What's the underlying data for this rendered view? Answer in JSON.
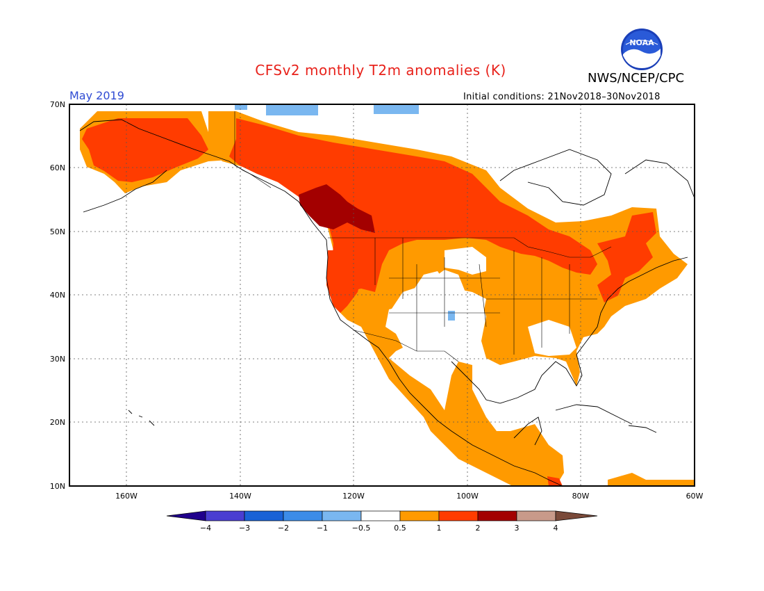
{
  "header": {
    "title": "CFSv2 monthly T2m anomalies (K)",
    "agency": "NWS/NCEP/CPC",
    "logo_text": "NOAA",
    "valid_month": "May 2019",
    "initial_conditions": "Initial conditions: 21Nov2018–30Nov2018"
  },
  "axes": {
    "lat_labels": [
      "70N",
      "60N",
      "50N",
      "40N",
      "30N",
      "20N",
      "10N"
    ],
    "lon_labels": [
      "160W",
      "140W",
      "120W",
      "100W",
      "80W",
      "60W"
    ],
    "lat_range": [
      10,
      70
    ],
    "lon_range": [
      -170,
      -60
    ],
    "grid": "dotted"
  },
  "colorbar": {
    "tick_labels": [
      "−4",
      "−3",
      "−2",
      "−1",
      "−0.5",
      "0.5",
      "1",
      "2",
      "3",
      "4"
    ],
    "colors": [
      "#20008c",
      "#4a3ed1",
      "#1a62d6",
      "#3c8ce8",
      "#7ab7f0",
      "#ffffff",
      "#ff9a00",
      "#ff3c00",
      "#a30000",
      "#c89a8a",
      "#7a4a3a"
    ]
  },
  "legend_colors": {
    "anom_0_5_to_1": "#ff9a00",
    "anom_1_to_2": "#ff3c00",
    "anom_2_to_3": "#a30000",
    "anom_neg_1_to_neg_0_5": "#7ab7f0"
  }
}
